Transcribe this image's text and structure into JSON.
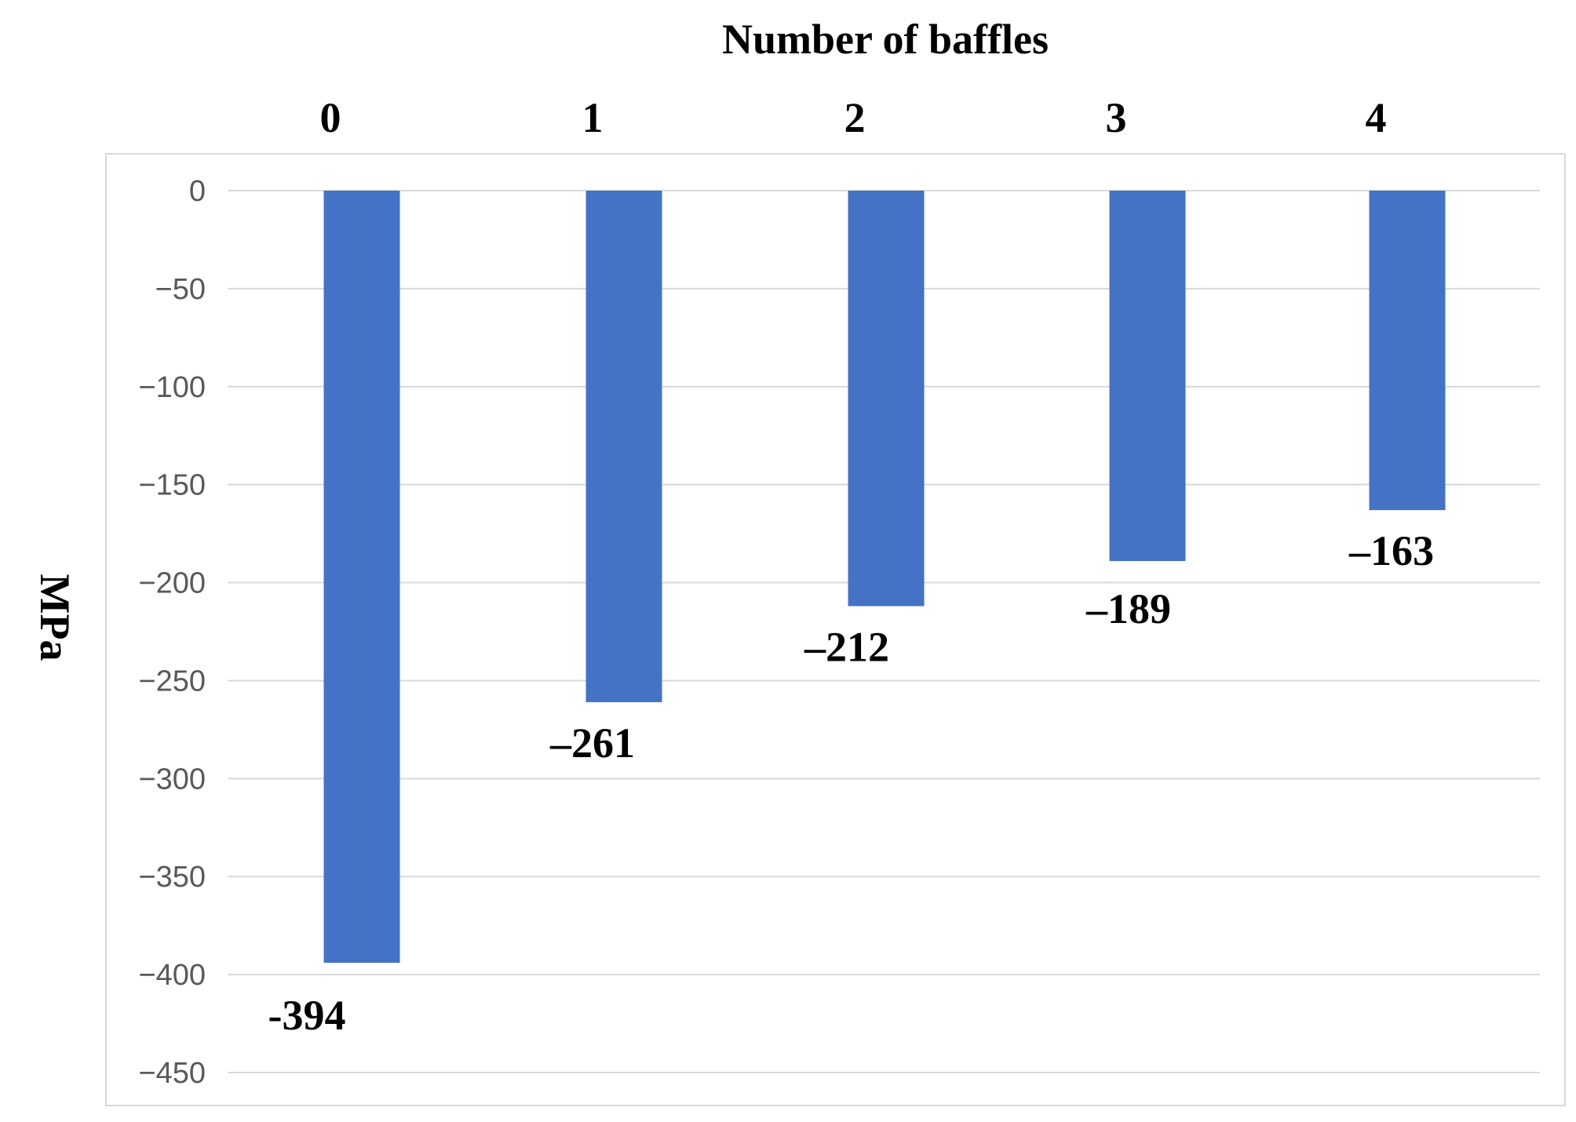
{
  "chart_data": {
    "type": "bar",
    "title": "",
    "xlabel": "Number of baffles",
    "ylabel": "MPa",
    "categories": [
      "0",
      "1",
      "2",
      "3",
      "4"
    ],
    "values": [
      -394,
      -261,
      -212,
      -189,
      -163
    ],
    "value_labels": [
      "-394",
      "–261",
      "–212",
      "–189",
      "–163"
    ],
    "ylim": [
      -450,
      0
    ],
    "yticks": [
      0,
      -50,
      -100,
      -150,
      -200,
      -250,
      -300,
      -350,
      -400,
      -450
    ],
    "ytick_labels": [
      "0",
      "−50",
      "−100",
      "−150",
      "−200",
      "−250",
      "−300",
      "−350",
      "−400",
      "−450"
    ],
    "x_axis_position": "top",
    "grid": true,
    "legend": "none",
    "bar_color": "#4472C4",
    "grid_color": "#D9D9D9"
  }
}
